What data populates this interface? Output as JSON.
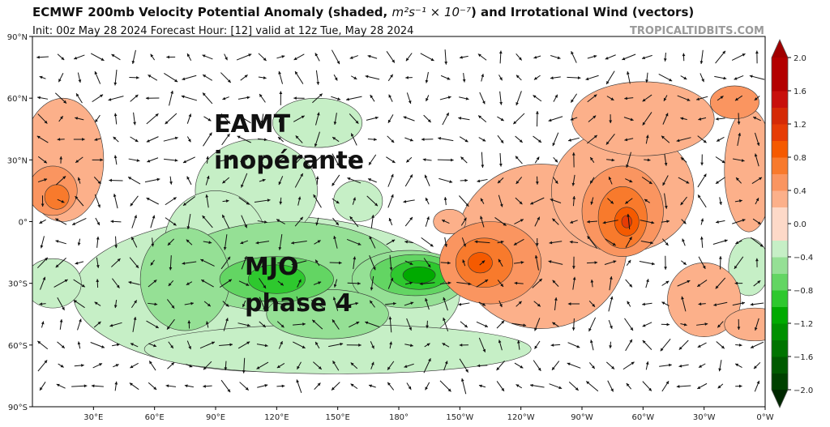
{
  "header": {
    "title_prefix": "ECMWF 200mb Velocity Potential Anomaly (shaded, ",
    "title_units": "m²s⁻¹ × 10⁻⁷",
    "title_suffix": ") and Irrotational Wind (vectors)",
    "subtitle": "Init: 00z May 28 2024   Forecast Hour: [12]   valid at 12z Tue, May 28 2024",
    "credit": "TROPICALTIDBITS.COM"
  },
  "chart_data": {
    "type": "heatmap",
    "title": "ECMWF 200mb Velocity Potential Anomaly (shaded, m²s⁻¹ × 10⁻⁷) and Irrotational Wind (vectors)",
    "x_ticks": [
      "30°E",
      "60°E",
      "90°E",
      "120°E",
      "150°E",
      "180°",
      "150°W",
      "120°W",
      "90°W",
      "60°W",
      "30°W",
      "0°W"
    ],
    "y_ticks": [
      "90°N",
      "60°N",
      "30°N",
      "0°",
      "30°S",
      "60°S",
      "90°S"
    ],
    "xlim": [
      0,
      360
    ],
    "ylim": [
      -90,
      90
    ],
    "colorbar": {
      "ticks": [
        "2.0",
        "1.6",
        "1.2",
        "0.8",
        "0.4",
        "0.0",
        "−0.4",
        "−0.8",
        "−1.2",
        "−1.6",
        "−2.0"
      ],
      "range": [
        -2.0,
        2.0
      ],
      "step": 0.2,
      "colors": [
        "#004100",
        "#005a00",
        "#007400",
        "#009000",
        "#00aa00",
        "#2ec82e",
        "#63d563",
        "#95e095",
        "#c6efc6",
        "#ffffff",
        "#fdd9c8",
        "#fcb08a",
        "#fa9560",
        "#f87a2c",
        "#f55a00",
        "#e63c05",
        "#d52a06",
        "#c8100c",
        "#b30000"
      ],
      "over_color": "#a00000",
      "under_color": "#002800"
    },
    "annotations": [
      {
        "line1": "EAMT",
        "line2": "inopérante"
      },
      {
        "line1": "MJO",
        "line2": "phase 4"
      }
    ]
  }
}
